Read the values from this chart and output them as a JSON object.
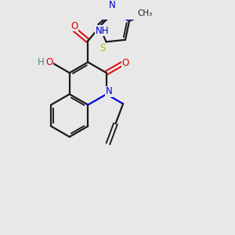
{
  "bg_color": "#e8e8e8",
  "bond_color": "#1a1a1a",
  "N_color": "#0000dd",
  "O_color": "#dd0000",
  "S_color": "#b8b800",
  "H_color": "#4a8888",
  "figsize": [
    3.0,
    3.0
  ],
  "dpi": 100,
  "xlim": [
    0,
    10
  ],
  "ylim": [
    0,
    10
  ]
}
